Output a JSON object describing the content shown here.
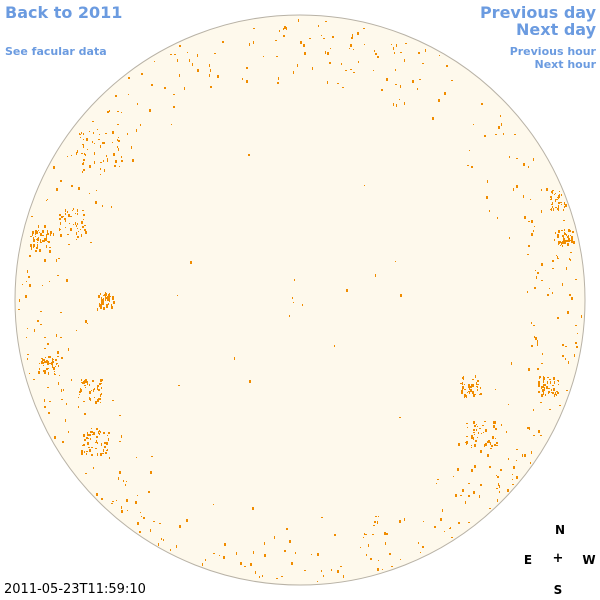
{
  "nav": {
    "back_label": "Back to 2011",
    "facular_label": "See facular data",
    "prev_day_label": "Previous day",
    "next_day_label": "Next day",
    "prev_hour_label": "Previous hour",
    "next_hour_label": "Next hour"
  },
  "timestamp": "2011-05-23T11:59:10",
  "compass": {
    "north": "N",
    "south": "S",
    "east": "E",
    "west": "W",
    "center": "+"
  },
  "colors": {
    "disk_fill": "#fef9ec",
    "disk_stroke": "#b8b2a6",
    "facula": "#f08c00",
    "link": "#6b9be0"
  },
  "icons": {
    "disk": "solar-disk-icon",
    "compass_center": "plus-icon"
  }
}
